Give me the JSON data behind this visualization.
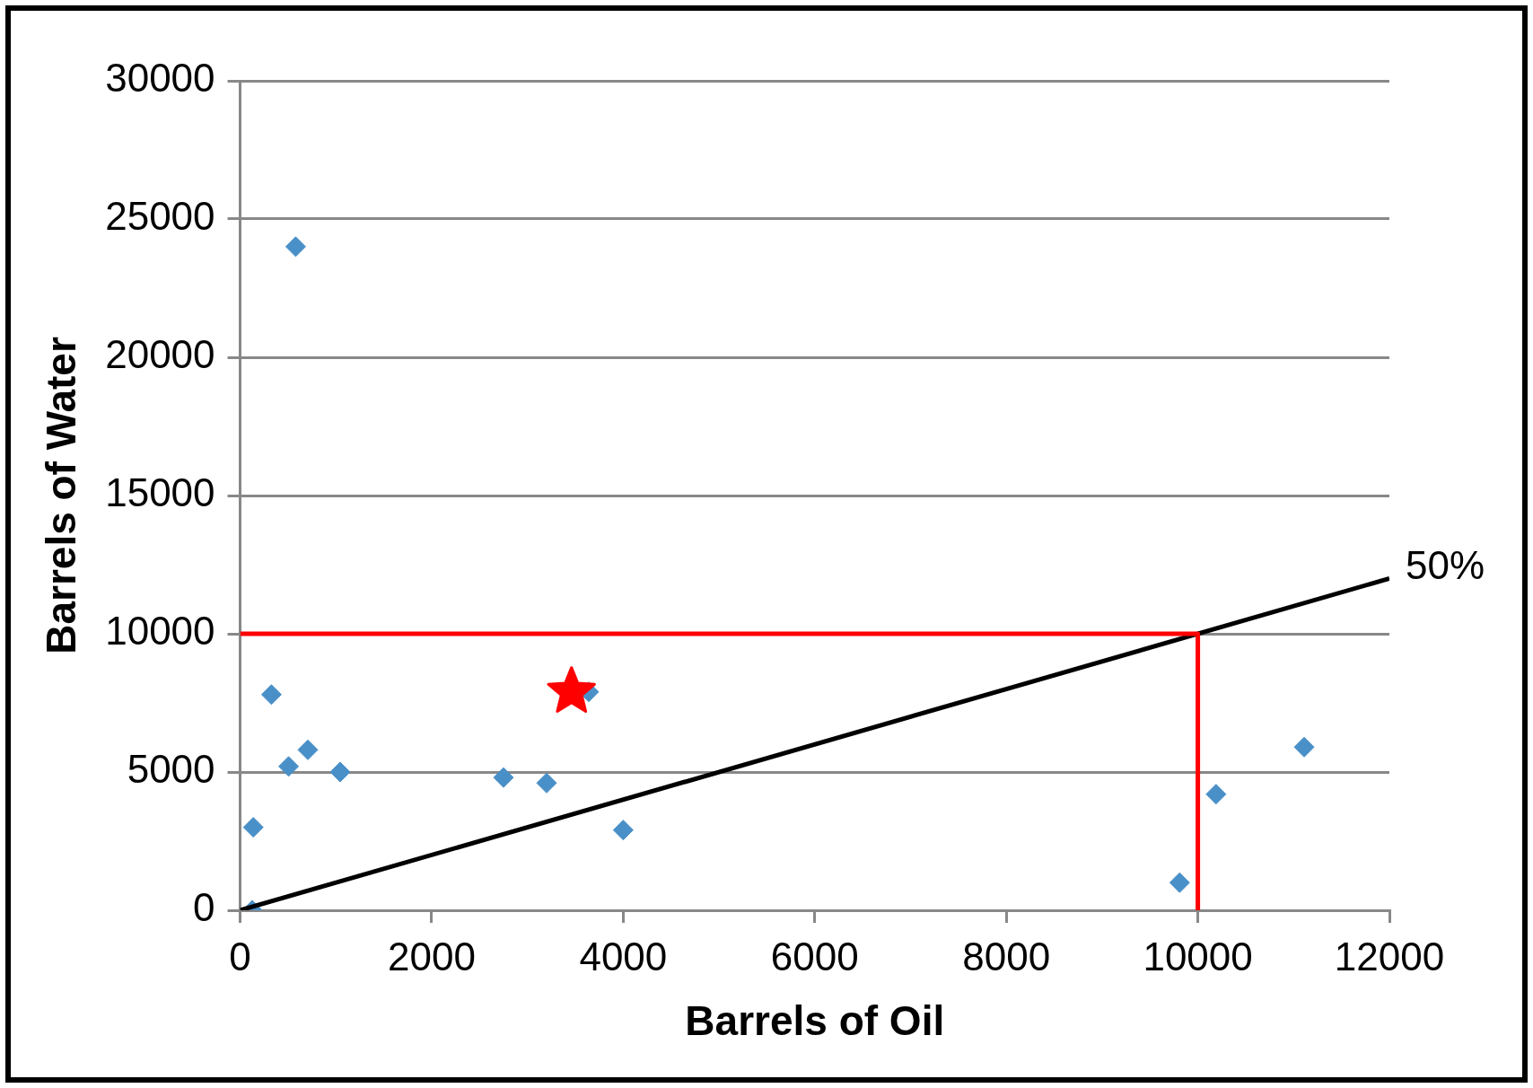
{
  "chart_data": {
    "type": "scatter",
    "xlabel": "Barrels of Oil",
    "ylabel": "Barrels of Water",
    "xlim": [
      0,
      12000
    ],
    "xticks": [
      0,
      2000,
      4000,
      6000,
      8000,
      10000,
      12000
    ],
    "ylim": [
      0,
      30000
    ],
    "yticks": [
      0,
      5000,
      10000,
      15000,
      20000,
      25000,
      30000
    ],
    "grid": "y",
    "legend": false,
    "series": [
      {
        "type": "scatter",
        "color": "#4a90c8",
        "marker": "diamond",
        "x": [
          127,
          137,
          580,
          327,
          506,
          707,
          1044,
          2750,
          3200,
          3640,
          4000,
          9810,
          10190,
          11110
        ],
        "values": [
          0,
          3000,
          24000,
          7800,
          5200,
          5800,
          5000,
          4800,
          4600,
          7900,
          2900,
          1000,
          4200,
          5900
        ]
      },
      {
        "type": "line",
        "color": "#000000",
        "marker": "none",
        "x": [
          0,
          12000
        ],
        "values": [
          0,
          12000
        ]
      },
      {
        "type": "line",
        "color": "#ff0000",
        "marker": "none",
        "x": [
          0,
          10000,
          10000
        ],
        "values": [
          10000,
          10000,
          0
        ]
      },
      {
        "type": "scatter",
        "color": "#ff0000",
        "marker": "star",
        "x": [
          3460
        ],
        "values": [
          7900
        ]
      }
    ],
    "annotations": [
      {
        "text": "50%",
        "x": 12000,
        "y": 12000
      }
    ]
  }
}
